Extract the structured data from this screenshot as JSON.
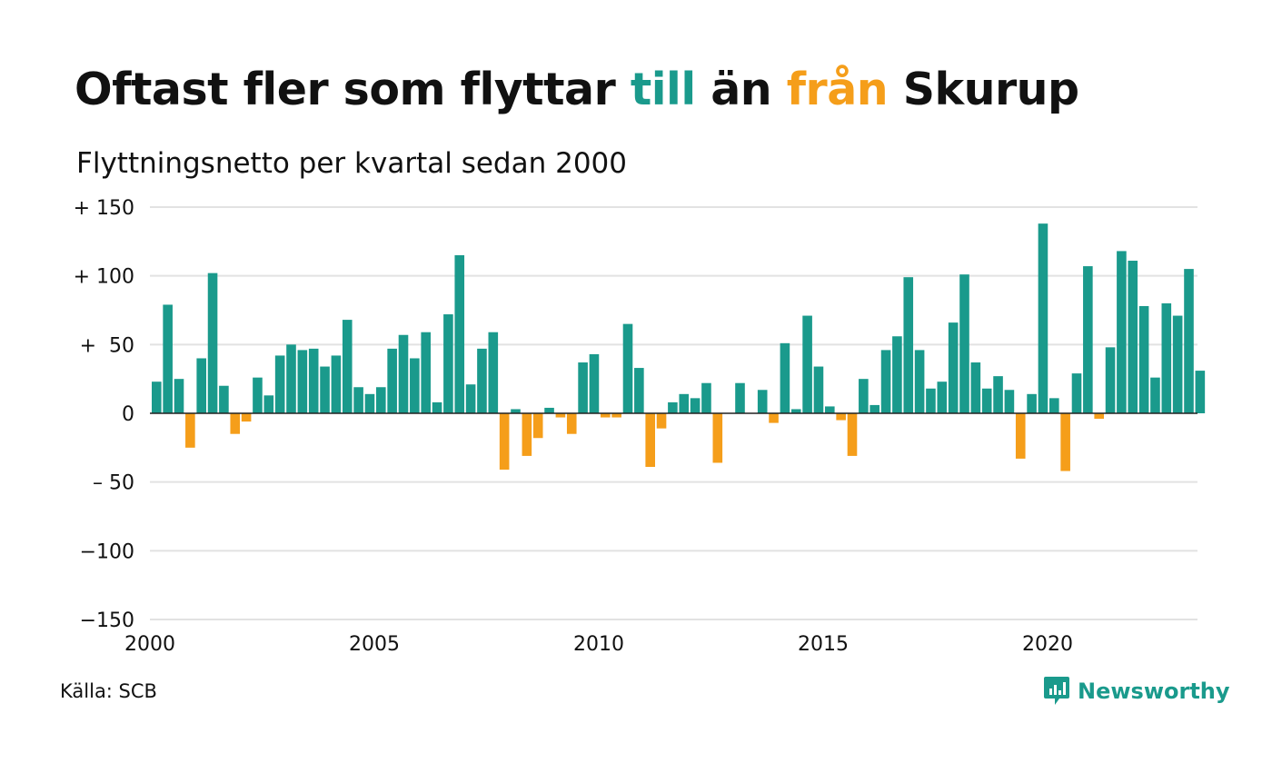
{
  "heading": {
    "part1": "Oftast fler som flyttar ",
    "word_to": "till",
    "part2": " än ",
    "word_from": "från",
    "part3": " Skurup",
    "subtitle": "Flyttningsnetto per kvartal sedan 2000"
  },
  "source": "Källa: SCB",
  "brand": "Newsworthy",
  "colors": {
    "positive": "#1a9a8c",
    "negative": "#f59e1a",
    "grid": "#e2e2e2",
    "zero_line": "#222222",
    "text": "#111111"
  },
  "chart_data": {
    "type": "bar",
    "x_start": "2000 Q1",
    "x_end": "2023 Q2",
    "x_tick_labels": [
      "2000",
      "2005",
      "2010",
      "2015",
      "2020"
    ],
    "y_tick_labels": [
      "+ 150",
      "+ 100",
      "+  50",
      "0",
      "– 50",
      "−100",
      "−150"
    ],
    "ylim": [
      -150,
      150
    ],
    "ytick_values": [
      150,
      100,
      50,
      0,
      -50,
      -100,
      -150
    ],
    "grid": true,
    "values": [
      23,
      79,
      25,
      -25,
      40,
      102,
      20,
      -15,
      -6,
      26,
      13,
      42,
      50,
      46,
      47,
      34,
      42,
      68,
      19,
      14,
      19,
      47,
      57,
      40,
      59,
      8,
      72,
      115,
      21,
      47,
      59,
      -41,
      3,
      -31,
      -18,
      4,
      -3,
      -15,
      37,
      43,
      -3,
      -3,
      65,
      33,
      -39,
      -11,
      8,
      14,
      11,
      22,
      -36,
      0,
      22,
      0,
      17,
      -7,
      51,
      3,
      71,
      34,
      5,
      -5,
      -31,
      25,
      6,
      46,
      56,
      99,
      46,
      18,
      23,
      66,
      101,
      37,
      18,
      27,
      17,
      -33,
      14,
      138,
      11,
      -42,
      29,
      107,
      -4,
      48,
      118,
      111,
      78,
      26,
      80,
      71,
      105,
      31
    ]
  }
}
